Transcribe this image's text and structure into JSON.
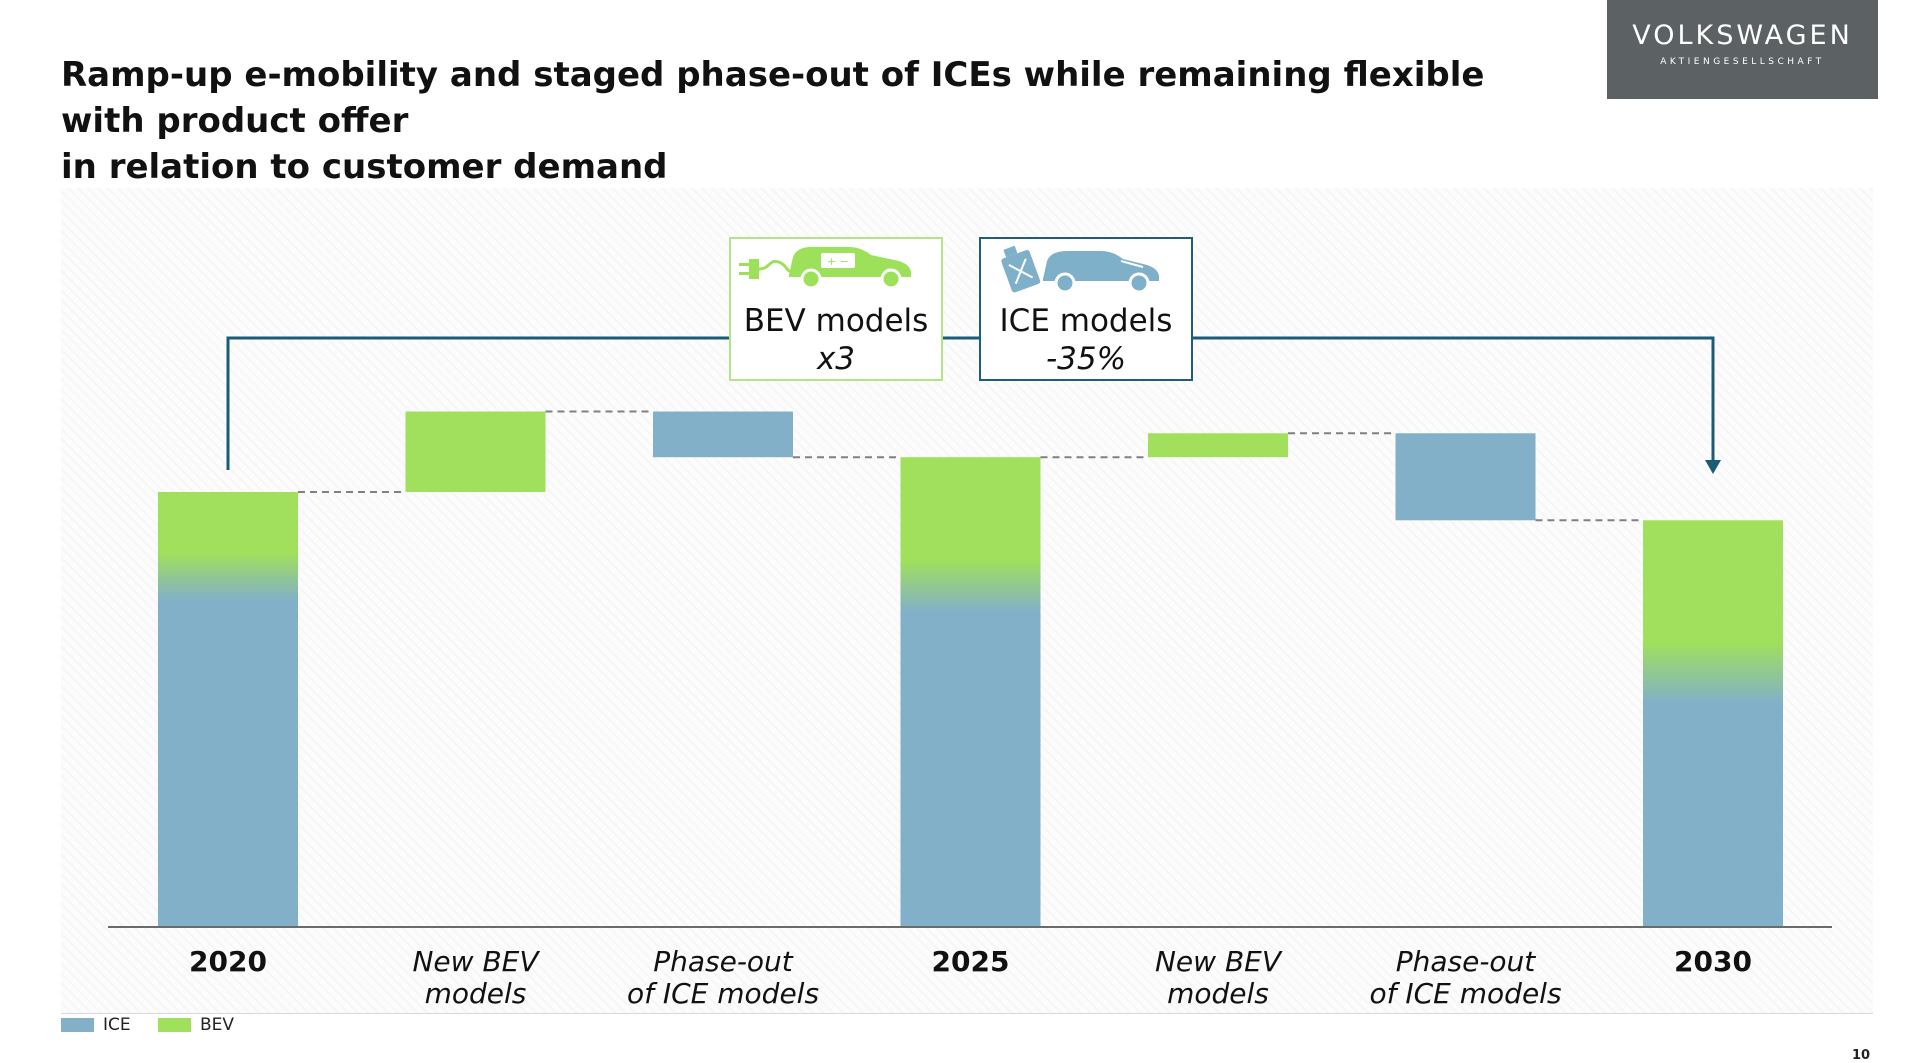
{
  "header": {
    "title_line1": "Ramp-up e-mobility and staged phase-out of ICEs while remaining flexible with product offer",
    "title_line2": "in relation to customer demand"
  },
  "logo": {
    "name": "VOLKSWAGEN",
    "subtitle": "AKTIENGESELLSCHAFT",
    "background": "#5c6163"
  },
  "callouts": {
    "bev": {
      "label": "BEV models",
      "value": "x3",
      "icon": "ev-car-plug-icon",
      "color": "#9de05a"
    },
    "ice": {
      "label": "ICE models",
      "value": "-35%",
      "icon": "fuel-can-car-icon",
      "color": "#7fb0c9"
    }
  },
  "chart_data": {
    "type": "waterfall",
    "title": "",
    "xlabel": "",
    "ylabel": "",
    "categories": [
      "2020",
      "New BEV models",
      "Phase-out of ICE models",
      "2025",
      "New BEV models",
      "Phase-out of ICE models",
      "2030"
    ],
    "category_lines": [
      [
        "2020"
      ],
      [
        "New BEV",
        "models"
      ],
      [
        "Phase-out",
        "of ICE models"
      ],
      [
        "2025"
      ],
      [
        "New BEV",
        "models"
      ],
      [
        "Phase-out",
        "of ICE models"
      ],
      [
        "2030"
      ]
    ],
    "category_kind": [
      "total",
      "increase",
      "decrease",
      "total",
      "increase",
      "decrease",
      "total"
    ],
    "totals": [
      {
        "category": "2020",
        "value": 100,
        "bev_share": 0.25
      },
      {
        "category": "2025",
        "value": 108,
        "bev_share": 0.33
      },
      {
        "category": "2030",
        "value": 93.5,
        "bev_share": 0.45
      }
    ],
    "steps": [
      {
        "category": "New BEV models",
        "series": "BEV",
        "start": 100,
        "end": 118.5
      },
      {
        "category": "Phase-out of ICE models",
        "series": "ICE",
        "start": 118.5,
        "end": 108
      },
      {
        "category": "New BEV models",
        "series": "BEV",
        "start": 108,
        "end": 113.5
      },
      {
        "category": "Phase-out of ICE models",
        "series": "ICE",
        "start": 113.5,
        "end": 93.5
      }
    ],
    "series": [
      {
        "name": "ICE",
        "color": "#82b0c8"
      },
      {
        "name": "BEV",
        "color": "#a0e05c"
      }
    ],
    "ylim": [
      0,
      125
    ],
    "grid": false,
    "legend_position": "bottom-left",
    "connector_color": "#1a5b76"
  },
  "page_number": "10"
}
